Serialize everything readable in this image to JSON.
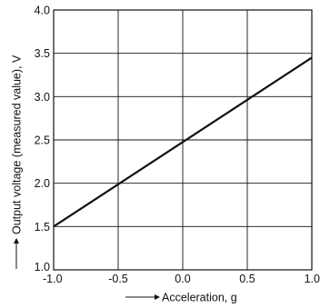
{
  "chart_data": {
    "type": "line",
    "title": "",
    "xlabel": "Acceleration, g",
    "ylabel": "Output voltage (measured value), V",
    "xlim": [
      -1.0,
      1.0
    ],
    "ylim": [
      1.0,
      4.0
    ],
    "xticks": [
      -1.0,
      -0.5,
      0.0,
      0.5,
      1.0
    ],
    "yticks": [
      1.0,
      1.5,
      2.0,
      2.5,
      3.0,
      3.5,
      4.0
    ],
    "xtick_labels": [
      "-1.0",
      "-0.5",
      "0.0",
      "0.5",
      "1.0"
    ],
    "ytick_labels": [
      "1.0",
      "1.5",
      "2.0",
      "2.5",
      "3.0",
      "3.5",
      "4.0"
    ],
    "grid": true,
    "series": [
      {
        "x": [
          -1.0,
          1.0
        ],
        "y": [
          1.5,
          3.45
        ]
      }
    ]
  }
}
